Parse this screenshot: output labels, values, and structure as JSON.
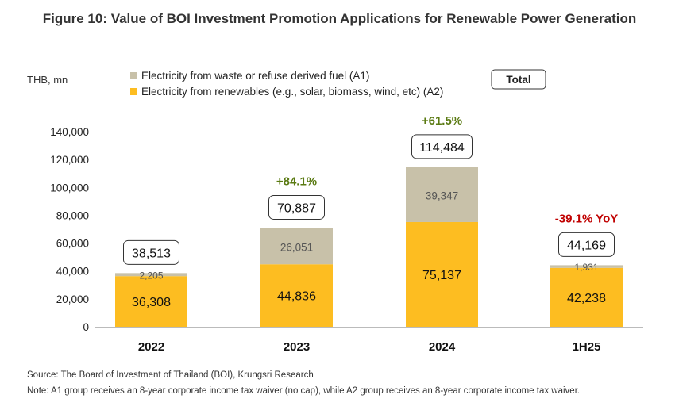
{
  "chart_data": {
    "type": "bar",
    "stacked": true,
    "title": "Figure 10: Value of BOI Investment Promotion Applications for Renewable Power Generation",
    "ylabel": "THB, mn",
    "ylim": [
      0,
      140000
    ],
    "yticks": [
      0,
      20000,
      40000,
      60000,
      80000,
      100000,
      120000,
      140000
    ],
    "ytick_labels": [
      "0",
      "20,000",
      "40,000",
      "60,000",
      "80,000",
      "100,000",
      "120,000",
      "140,000"
    ],
    "grid": false,
    "legend_position": "top",
    "categories": [
      "2022",
      "2023",
      "2024",
      "1H25"
    ],
    "series": [
      {
        "name": "Electricity from renewables (e.g., solar, biomass, wind, etc) (A2)",
        "color": "#FDBD21",
        "values": [
          36308,
          44836,
          75137,
          42238
        ],
        "labels": [
          "36,308",
          "44,836",
          "75,137",
          "42,238"
        ]
      },
      {
        "name": "Electricity from waste or refuse derived fuel (A1)",
        "color": "#C8C1A9",
        "values": [
          2205,
          26051,
          39347,
          1931
        ],
        "labels": [
          "2,205",
          "26,051",
          "39,347",
          "1,931"
        ]
      }
    ],
    "totals": {
      "legend_label": "Total",
      "values": [
        38513,
        70887,
        114484,
        44169
      ],
      "labels": [
        "38,513",
        "70,887",
        "114,484",
        "44,169"
      ]
    },
    "growth": [
      {
        "label": "",
        "color": ""
      },
      {
        "label": "+84.1%",
        "color": "#5A7A12"
      },
      {
        "label": "+61.5%",
        "color": "#5A7A12"
      },
      {
        "label": "-39.1% YoY",
        "color": "#C00000"
      }
    ]
  },
  "footer": {
    "source": "Source: The Board of Investment of Thailand (BOI), Krungsri Research",
    "note": "Note: A1 group receives an 8-year corporate income tax waiver (no cap), while A2 group receives an 8-year corporate income tax waiver."
  }
}
